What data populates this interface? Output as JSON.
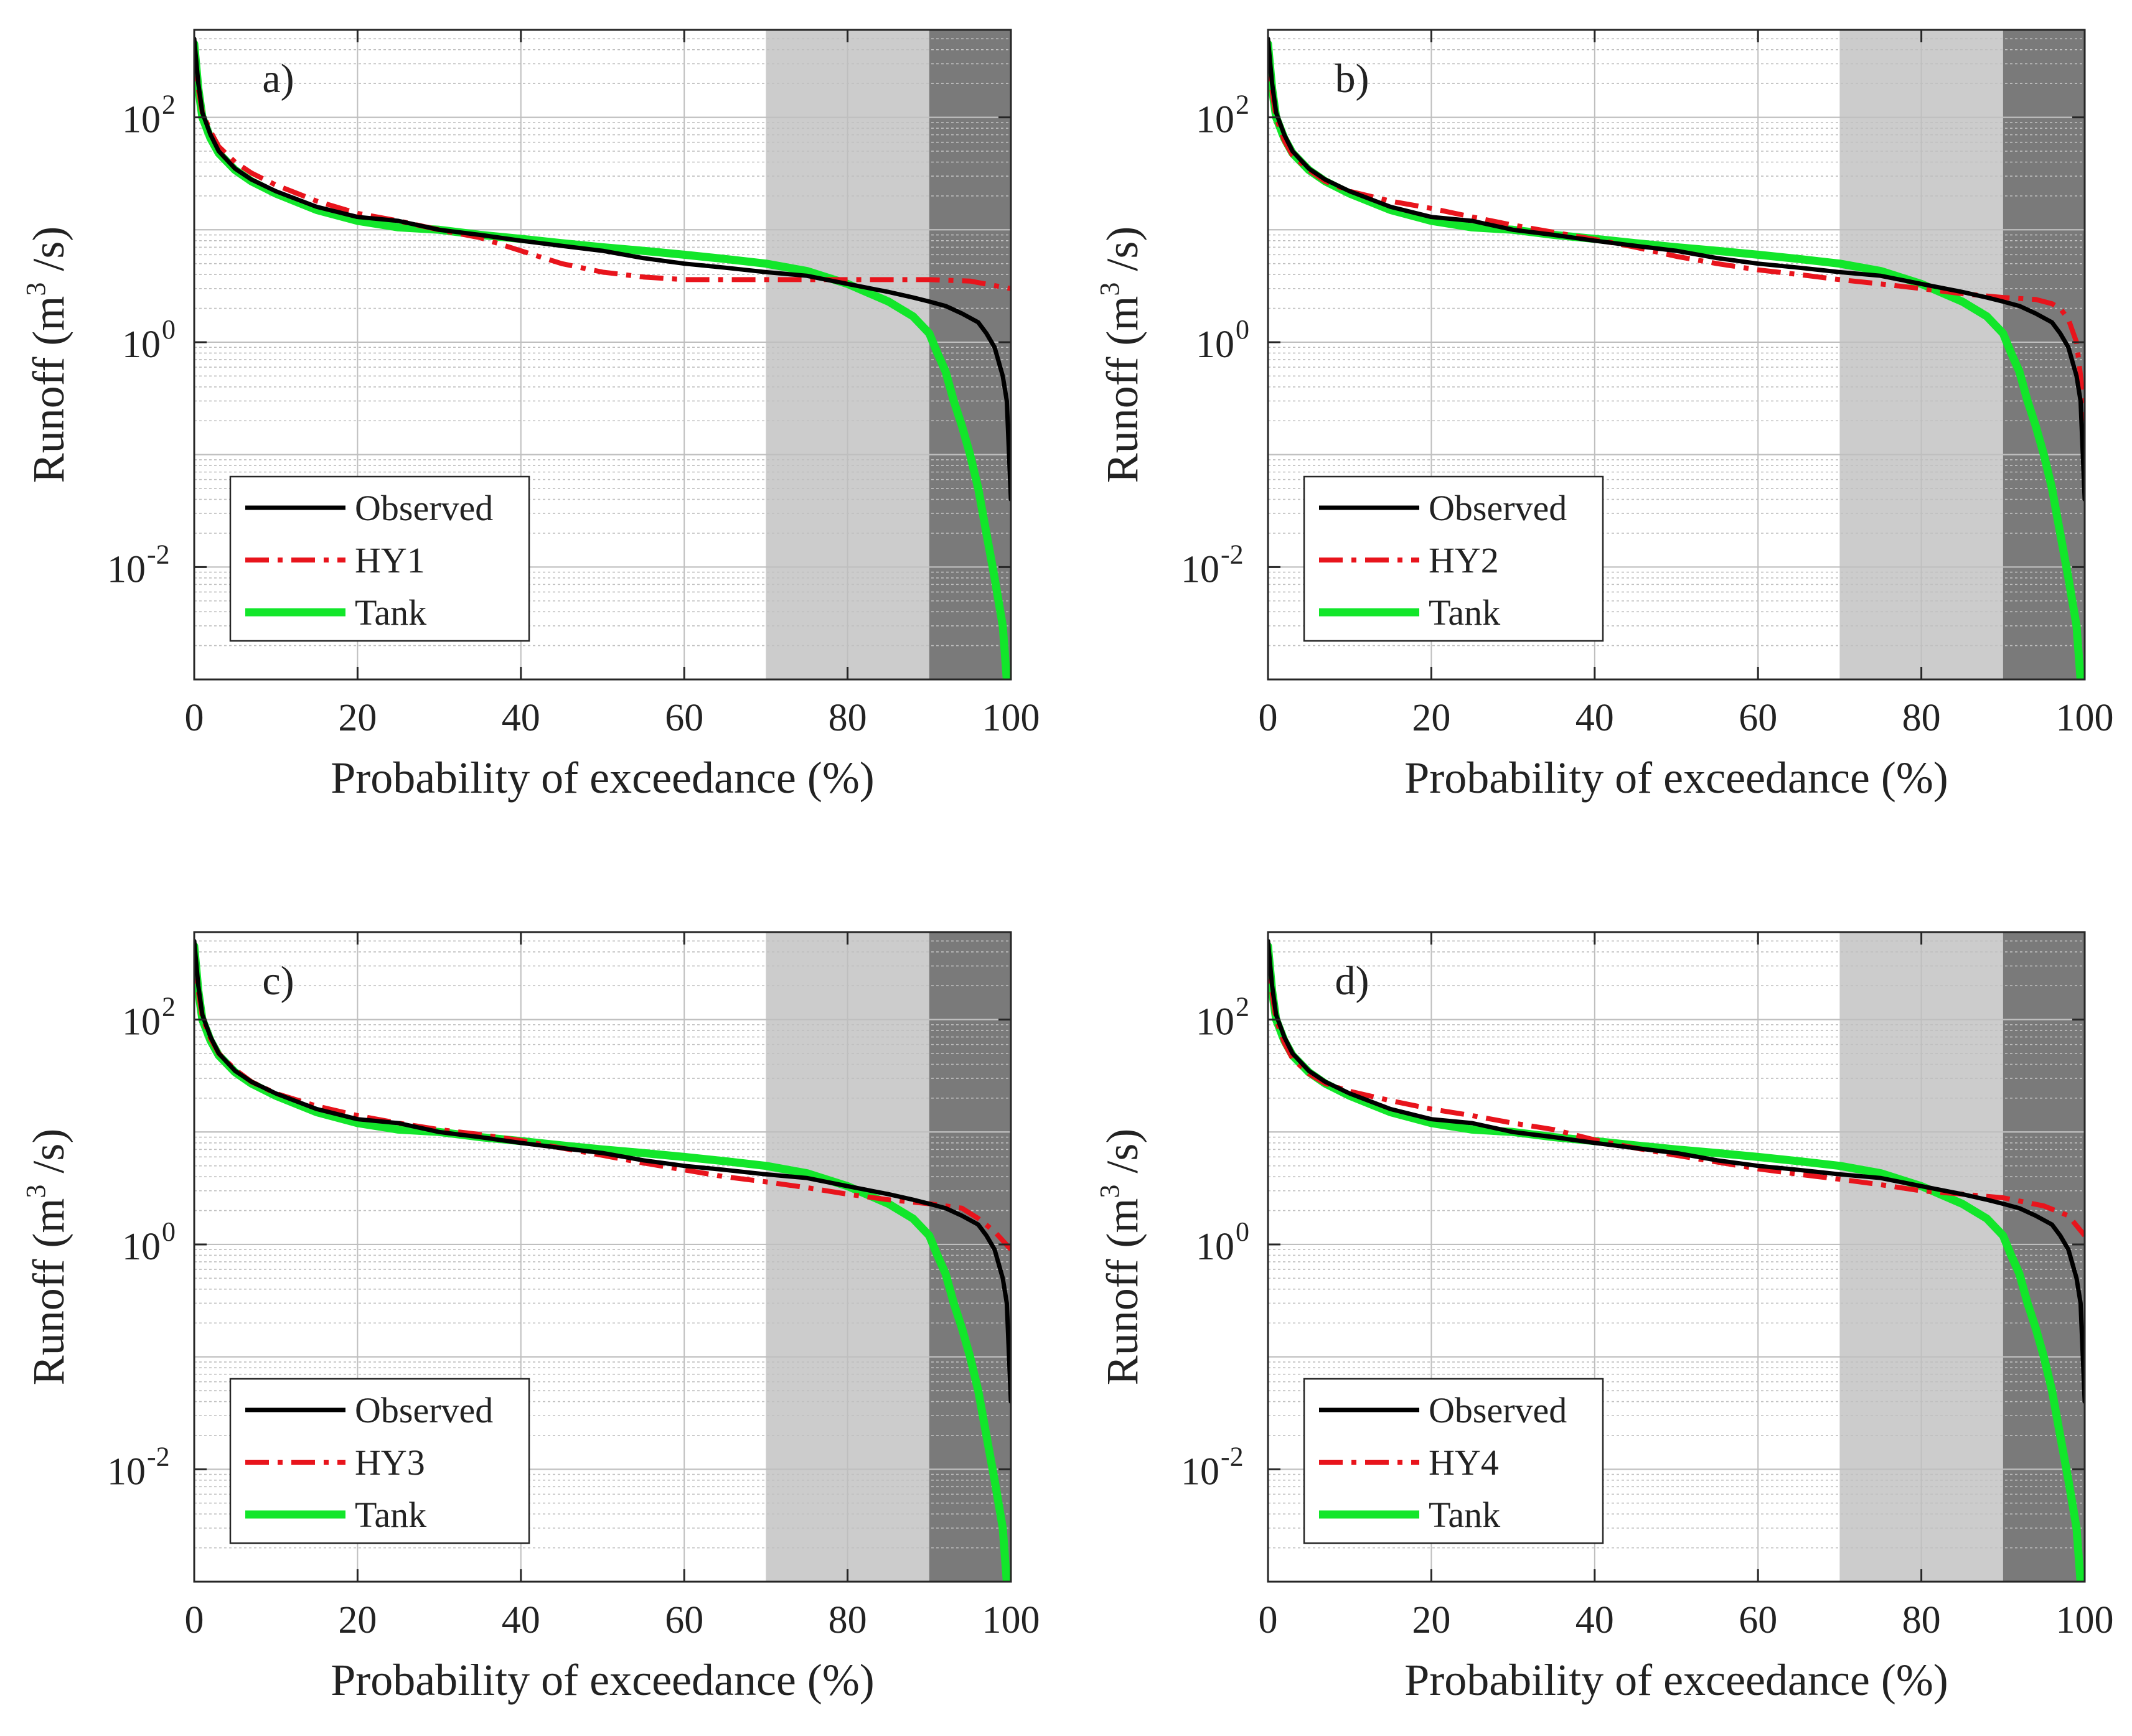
{
  "figure": {
    "colors": {
      "observed": "#000000",
      "simulated": "#e8141c",
      "tank": "#12e62a",
      "shade_light": "#cccccc",
      "shade_dark": "#7a7a7a",
      "grid": "#bfbfbf"
    }
  },
  "chart_data": [
    {
      "type": "line",
      "panel_label": "a)",
      "xlabel": "Probability of exceedance (%)",
      "ylabel_prefix": "Runoff (m",
      "ylabel_sup": "3",
      "ylabel_suffix": " /s)",
      "yscale": "log",
      "xlim": [
        0,
        100
      ],
      "ylim": [
        0.001,
        600
      ],
      "xticks": [
        0,
        20,
        40,
        60,
        80,
        100
      ],
      "xtick_labels": [
        "0",
        "20",
        "40",
        "60",
        "80",
        "100"
      ],
      "yticks": [
        0.01,
        1,
        100
      ],
      "ytick_base": "10",
      "ytick_exponents": [
        "-2",
        "0",
        "2"
      ],
      "grid": true,
      "shaded_regions": [
        {
          "x0": 70,
          "x1": 90,
          "shade": "light"
        },
        {
          "x0": 90,
          "x1": 100,
          "shade": "dark"
        }
      ],
      "legend_location": "lower-left",
      "series": [
        {
          "name": "Observed",
          "style": "solid",
          "color_key": "observed",
          "x": [
            0,
            0.5,
            1,
            2,
            3,
            5,
            7,
            10,
            15,
            20,
            25,
            30,
            35,
            40,
            45,
            50,
            55,
            60,
            65,
            70,
            75,
            80,
            85,
            88,
            90,
            92,
            94,
            96,
            97,
            98,
            99,
            99.5,
            100
          ],
          "y": [
            500,
            200,
            110,
            70,
            50,
            35,
            28,
            22,
            16,
            13,
            12,
            10,
            9,
            8,
            7.2,
            6.5,
            5.6,
            5.0,
            4.6,
            4.2,
            3.9,
            3.3,
            2.8,
            2.5,
            2.3,
            2.1,
            1.8,
            1.5,
            1.2,
            0.9,
            0.5,
            0.3,
            0.04
          ]
        },
        {
          "name": "HY1",
          "style": "dashdot",
          "color_key": "simulated",
          "x": [
            0,
            0.5,
            1,
            2,
            3,
            5,
            7,
            10,
            15,
            20,
            25,
            30,
            35,
            40,
            45,
            50,
            55,
            60,
            65,
            70,
            75,
            80,
            85,
            90,
            95,
            100
          ],
          "y": [
            450,
            180,
            110,
            75,
            55,
            40,
            32,
            25,
            18,
            14,
            12,
            10,
            8.5,
            6.5,
            5.0,
            4.2,
            3.8,
            3.6,
            3.6,
            3.6,
            3.6,
            3.6,
            3.6,
            3.6,
            3.5,
            3.0
          ]
        },
        {
          "name": "Tank",
          "style": "solid-thick",
          "color_key": "tank",
          "x": [
            0,
            0.5,
            1,
            2,
            3,
            5,
            7,
            10,
            15,
            20,
            25,
            30,
            35,
            40,
            45,
            50,
            55,
            60,
            65,
            70,
            75,
            80,
            85,
            88,
            90,
            91,
            92,
            93,
            94,
            95,
            96,
            97,
            98,
            99,
            99.5
          ],
          "y": [
            450,
            180,
            100,
            65,
            48,
            34,
            27,
            21,
            15,
            12,
            10.5,
            10,
            9,
            8.3,
            7.6,
            7.0,
            6.5,
            6.0,
            5.5,
            5.0,
            4.3,
            3.3,
            2.3,
            1.7,
            1.2,
            0.8,
            0.55,
            0.3,
            0.18,
            0.1,
            0.05,
            0.02,
            0.008,
            0.003,
            0.001
          ]
        }
      ]
    },
    {
      "type": "line",
      "panel_label": "b)",
      "xlabel": "Probability of exceedance (%)",
      "ylabel_prefix": "Runoff (m",
      "ylabel_sup": "3",
      "ylabel_suffix": " /s)",
      "yscale": "log",
      "xlim": [
        0,
        100
      ],
      "ylim": [
        0.001,
        600
      ],
      "xticks": [
        0,
        20,
        40,
        60,
        80,
        100
      ],
      "xtick_labels": [
        "0",
        "20",
        "40",
        "60",
        "80",
        "100"
      ],
      "yticks": [
        0.01,
        1,
        100
      ],
      "ytick_base": "10",
      "ytick_exponents": [
        "-2",
        "0",
        "2"
      ],
      "grid": true,
      "shaded_regions": [
        {
          "x0": 70,
          "x1": 90,
          "shade": "light"
        },
        {
          "x0": 90,
          "x1": 100,
          "shade": "dark"
        }
      ],
      "legend_location": "lower-left",
      "series": [
        {
          "name": "Observed",
          "style": "solid",
          "color_key": "observed",
          "x": [
            0,
            0.5,
            1,
            2,
            3,
            5,
            7,
            10,
            15,
            20,
            25,
            30,
            35,
            40,
            45,
            50,
            55,
            60,
            65,
            70,
            75,
            80,
            85,
            88,
            90,
            92,
            94,
            96,
            97,
            98,
            99,
            99.5,
            100
          ],
          "y": [
            500,
            200,
            110,
            70,
            50,
            35,
            28,
            22,
            16,
            13,
            12,
            10,
            9,
            8,
            7.2,
            6.5,
            5.6,
            5.0,
            4.6,
            4.2,
            3.9,
            3.3,
            2.8,
            2.5,
            2.3,
            2.1,
            1.8,
            1.5,
            1.2,
            0.9,
            0.5,
            0.3,
            0.04
          ]
        },
        {
          "name": "HY2",
          "style": "dashdot",
          "color_key": "simulated",
          "x": [
            0,
            0.5,
            1,
            2,
            3,
            5,
            7,
            10,
            15,
            20,
            25,
            30,
            35,
            40,
            45,
            50,
            55,
            60,
            65,
            70,
            75,
            80,
            85,
            90,
            94,
            96,
            97,
            98,
            99,
            99.5,
            100
          ],
          "y": [
            450,
            170,
            100,
            62,
            46,
            34,
            27,
            22,
            18,
            15.5,
            13,
            11,
            9.5,
            8.2,
            7.0,
            5.8,
            5.0,
            4.4,
            4.0,
            3.6,
            3.3,
            3.0,
            2.7,
            2.5,
            2.4,
            2.2,
            2.0,
            1.6,
            1.0,
            0.5,
            0.2
          ]
        },
        {
          "name": "Tank",
          "style": "solid-thick",
          "color_key": "tank",
          "x": [
            0,
            0.5,
            1,
            2,
            3,
            5,
            7,
            10,
            15,
            20,
            25,
            30,
            35,
            40,
            45,
            50,
            55,
            60,
            65,
            70,
            75,
            80,
            85,
            88,
            90,
            91,
            92,
            93,
            94,
            95,
            96,
            97,
            98,
            99,
            99.5
          ],
          "y": [
            450,
            180,
            100,
            65,
            48,
            34,
            27,
            21,
            15,
            12,
            10.5,
            10,
            9,
            8.3,
            7.6,
            7.0,
            6.5,
            6.0,
            5.5,
            5.0,
            4.3,
            3.3,
            2.3,
            1.7,
            1.2,
            0.8,
            0.55,
            0.3,
            0.18,
            0.1,
            0.05,
            0.02,
            0.008,
            0.003,
            0.001
          ]
        }
      ]
    },
    {
      "type": "line",
      "panel_label": "c)",
      "xlabel": "Probability of exceedance (%)",
      "ylabel_prefix": "Runoff (m",
      "ylabel_sup": "3",
      "ylabel_suffix": " /s)",
      "yscale": "log",
      "xlim": [
        0,
        100
      ],
      "ylim": [
        0.001,
        600
      ],
      "xticks": [
        0,
        20,
        40,
        60,
        80,
        100
      ],
      "xtick_labels": [
        "0",
        "20",
        "40",
        "60",
        "80",
        "100"
      ],
      "yticks": [
        0.01,
        1,
        100
      ],
      "ytick_base": "10",
      "ytick_exponents": [
        "-2",
        "0",
        "2"
      ],
      "grid": true,
      "shaded_regions": [
        {
          "x0": 70,
          "x1": 90,
          "shade": "light"
        },
        {
          "x0": 90,
          "x1": 100,
          "shade": "dark"
        }
      ],
      "legend_location": "lower-left",
      "series": [
        {
          "name": "Observed",
          "style": "solid",
          "color_key": "observed",
          "x": [
            0,
            0.5,
            1,
            2,
            3,
            5,
            7,
            10,
            15,
            20,
            25,
            30,
            35,
            40,
            45,
            50,
            55,
            60,
            65,
            70,
            75,
            80,
            85,
            88,
            90,
            92,
            94,
            96,
            97,
            98,
            99,
            99.5,
            100
          ],
          "y": [
            500,
            200,
            110,
            70,
            50,
            35,
            28,
            22,
            16,
            13,
            12,
            10,
            9,
            8,
            7.2,
            6.5,
            5.6,
            5.0,
            4.6,
            4.2,
            3.9,
            3.3,
            2.8,
            2.5,
            2.3,
            2.1,
            1.8,
            1.5,
            1.2,
            0.9,
            0.5,
            0.3,
            0.04
          ]
        },
        {
          "name": "HY3",
          "style": "dashdot",
          "color_key": "simulated",
          "x": [
            0,
            0.5,
            1,
            2,
            3,
            5,
            7,
            10,
            15,
            20,
            25,
            30,
            35,
            40,
            45,
            50,
            55,
            60,
            65,
            70,
            75,
            80,
            85,
            90,
            94,
            96,
            98,
            100
          ],
          "y": [
            450,
            180,
            105,
            68,
            50,
            36,
            28,
            22,
            17,
            14,
            12,
            10.5,
            9.5,
            8.4,
            7.2,
            6.2,
            5.3,
            4.6,
            4.0,
            3.6,
            3.2,
            2.8,
            2.5,
            2.3,
            2.1,
            1.7,
            1.3,
            0.9
          ]
        },
        {
          "name": "Tank",
          "style": "solid-thick",
          "color_key": "tank",
          "x": [
            0,
            0.5,
            1,
            2,
            3,
            5,
            7,
            10,
            15,
            20,
            25,
            30,
            35,
            40,
            45,
            50,
            55,
            60,
            65,
            70,
            75,
            80,
            85,
            88,
            90,
            91,
            92,
            93,
            94,
            95,
            96,
            97,
            98,
            99,
            99.5
          ],
          "y": [
            450,
            180,
            100,
            65,
            48,
            34,
            27,
            21,
            15,
            12,
            10.5,
            10,
            9,
            8.3,
            7.6,
            7.0,
            6.5,
            6.0,
            5.5,
            5.0,
            4.3,
            3.3,
            2.3,
            1.7,
            1.2,
            0.8,
            0.55,
            0.3,
            0.18,
            0.1,
            0.05,
            0.02,
            0.008,
            0.003,
            0.001
          ]
        }
      ]
    },
    {
      "type": "line",
      "panel_label": "d)",
      "xlabel": "Probability of exceedance (%)",
      "ylabel_prefix": "Runoff (m",
      "ylabel_sup": "3",
      "ylabel_suffix": " /s)",
      "yscale": "log",
      "xlim": [
        0,
        100
      ],
      "ylim": [
        0.001,
        600
      ],
      "xticks": [
        0,
        20,
        40,
        60,
        80,
        100
      ],
      "xtick_labels": [
        "0",
        "20",
        "40",
        "60",
        "80",
        "100"
      ],
      "yticks": [
        0.01,
        1,
        100
      ],
      "ytick_base": "10",
      "ytick_exponents": [
        "-2",
        "0",
        "2"
      ],
      "grid": true,
      "shaded_regions": [
        {
          "x0": 70,
          "x1": 90,
          "shade": "light"
        },
        {
          "x0": 90,
          "x1": 100,
          "shade": "dark"
        }
      ],
      "legend_location": "lower-left",
      "series": [
        {
          "name": "Observed",
          "style": "solid",
          "color_key": "observed",
          "x": [
            0,
            0.5,
            1,
            2,
            3,
            5,
            7,
            10,
            15,
            20,
            25,
            30,
            35,
            40,
            45,
            50,
            55,
            60,
            65,
            70,
            75,
            80,
            85,
            88,
            90,
            92,
            94,
            96,
            97,
            98,
            99,
            99.5,
            100
          ],
          "y": [
            500,
            200,
            110,
            70,
            50,
            35,
            28,
            22,
            16,
            13,
            12,
            10,
            9,
            8,
            7.2,
            6.5,
            5.6,
            5.0,
            4.6,
            4.2,
            3.9,
            3.3,
            2.8,
            2.5,
            2.3,
            2.1,
            1.8,
            1.5,
            1.2,
            0.9,
            0.5,
            0.3,
            0.04
          ]
        },
        {
          "name": "HY4",
          "style": "dashdot",
          "color_key": "simulated",
          "x": [
            0,
            0.5,
            1,
            2,
            3,
            5,
            7,
            10,
            15,
            20,
            25,
            30,
            35,
            40,
            45,
            50,
            55,
            60,
            65,
            70,
            75,
            80,
            85,
            90,
            95,
            98,
            100
          ],
          "y": [
            450,
            170,
            100,
            62,
            45,
            33,
            27,
            23,
            19,
            16,
            14,
            12,
            10.5,
            8.5,
            7.2,
            6.2,
            5.4,
            4.7,
            4.2,
            3.8,
            3.4,
            3.0,
            2.8,
            2.6,
            2.2,
            1.8,
            1.2
          ]
        },
        {
          "name": "Tank",
          "style": "solid-thick",
          "color_key": "tank",
          "x": [
            0,
            0.5,
            1,
            2,
            3,
            5,
            7,
            10,
            15,
            20,
            25,
            30,
            35,
            40,
            45,
            50,
            55,
            60,
            65,
            70,
            75,
            80,
            85,
            88,
            90,
            91,
            92,
            93,
            94,
            95,
            96,
            97,
            98,
            99,
            99.5
          ],
          "y": [
            450,
            180,
            100,
            65,
            48,
            34,
            27,
            21,
            15,
            12,
            10.5,
            10,
            9,
            8.3,
            7.6,
            7.0,
            6.5,
            6.0,
            5.5,
            5.0,
            4.3,
            3.3,
            2.3,
            1.7,
            1.2,
            0.8,
            0.55,
            0.3,
            0.18,
            0.1,
            0.05,
            0.02,
            0.008,
            0.003,
            0.001
          ]
        }
      ]
    }
  ]
}
